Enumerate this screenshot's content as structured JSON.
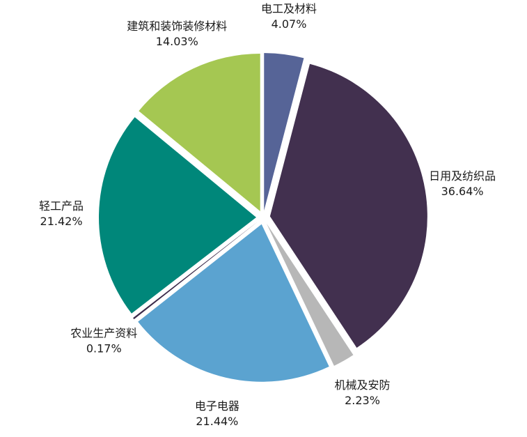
{
  "chart_data": {
    "type": "pie",
    "categories": [
      "电工及材料",
      "日用及纺织品",
      "机械及安防",
      "电子电器",
      "农业生产资料",
      "轻工产品",
      "建筑和装饰装修材料"
    ],
    "values": [
      4.07,
      36.64,
      2.23,
      21.44,
      0.17,
      21.42,
      14.03
    ],
    "value_labels": [
      "4.07%",
      "36.64%",
      "2.23%",
      "21.44%",
      "0.17%",
      "21.42%",
      "14.03%"
    ],
    "colors": [
      "#566497",
      "#42304f",
      "#b7b7b7",
      "#5ba3d0",
      "#3b2a4a",
      "#00877a",
      "#a5c752"
    ]
  }
}
